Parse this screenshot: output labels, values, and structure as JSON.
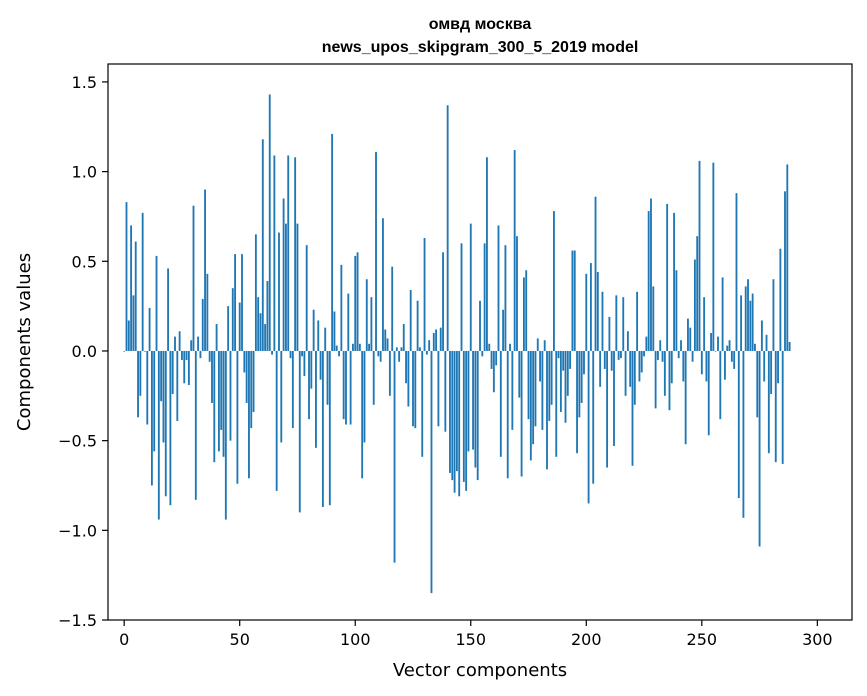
{
  "chart_data": {
    "type": "bar",
    "title": "омвд москва",
    "subtitle": "news_upos_skipgram_300_5_2019 model",
    "xlabel": "Vector components",
    "ylabel": "Components values",
    "xlim": [
      -7,
      315
    ],
    "ylim": [
      -1.5,
      1.6
    ],
    "x_ticks": [
      0,
      50,
      100,
      150,
      200,
      250,
      300
    ],
    "x_tick_labels": [
      "0",
      "50",
      "100",
      "150",
      "200",
      "250",
      "300"
    ],
    "y_ticks": [
      -1.5,
      -1.0,
      -0.5,
      0.0,
      0.5,
      1.0,
      1.5
    ],
    "y_tick_labels": [
      "−1.5",
      "−1.0",
      "−0.5",
      "0.0",
      "0.5",
      "1.0",
      "1.5"
    ],
    "bar_color": "#1f77b4",
    "series": [
      {
        "name": "components",
        "values": [
          0.0,
          0.83,
          0.17,
          0.7,
          0.31,
          0.61,
          -0.37,
          -0.25,
          0.77,
          0.0,
          -0.41,
          0.24,
          -0.75,
          -0.56,
          0.53,
          -0.94,
          -0.28,
          -0.51,
          -0.81,
          0.46,
          -0.86,
          -0.24,
          0.08,
          -0.39,
          0.11,
          -0.05,
          -0.18,
          -0.05,
          -0.19,
          0.06,
          0.81,
          -0.83,
          0.08,
          -0.04,
          0.29,
          0.9,
          0.43,
          -0.06,
          -0.29,
          -0.62,
          0.15,
          -0.56,
          -0.44,
          -0.59,
          -0.94,
          0.25,
          -0.5,
          0.35,
          0.54,
          -0.74,
          0.27,
          0.54,
          -0.12,
          -0.29,
          -0.71,
          -0.43,
          -0.34,
          0.65,
          0.3,
          0.21,
          1.18,
          0.15,
          0.39,
          1.43,
          -0.02,
          1.09,
          -0.78,
          0.66,
          -0.51,
          0.85,
          0.71,
          1.09,
          -0.04,
          -0.43,
          1.08,
          0.71,
          -0.9,
          -0.03,
          -0.14,
          0.59,
          -0.38,
          -0.21,
          0.23,
          -0.54,
          0.17,
          -0.16,
          -0.87,
          0.13,
          -0.3,
          -0.86,
          1.21,
          0.22,
          0.03,
          -0.03,
          0.48,
          -0.38,
          -0.41,
          0.32,
          -0.41,
          0.04,
          0.53,
          0.55,
          0.04,
          -0.71,
          -0.51,
          0.4,
          0.04,
          0.3,
          -0.3,
          1.11,
          -0.03,
          -0.06,
          0.74,
          0.12,
          0.07,
          -0.25,
          0.47,
          -1.18,
          0.02,
          -0.06,
          0.02,
          0.15,
          -0.18,
          -0.31,
          0.34,
          -0.42,
          -0.43,
          0.28,
          0.02,
          -0.59,
          0.63,
          -0.02,
          0.06,
          -1.35,
          0.1,
          0.12,
          -0.42,
          0.13,
          0.55,
          -0.45,
          1.37,
          -0.68,
          -0.72,
          -0.79,
          -0.67,
          -0.81,
          0.6,
          -0.73,
          -0.78,
          -0.56,
          0.71,
          -0.55,
          -0.65,
          -0.72,
          0.28,
          -0.03,
          0.6,
          1.08,
          0.04,
          -0.1,
          -0.23,
          -0.08,
          0.7,
          -0.59,
          0.23,
          0.59,
          -0.71,
          0.04,
          -0.44,
          1.12,
          0.64,
          -0.26,
          -0.7,
          0.41,
          0.45,
          -0.38,
          -0.61,
          -0.52,
          -0.42,
          0.07,
          -0.17,
          -0.44,
          0.06,
          -0.66,
          -0.39,
          -0.3,
          0.78,
          -0.59,
          -0.04,
          -0.34,
          -0.11,
          -0.4,
          -0.25,
          -0.1,
          0.56,
          0.56,
          -0.57,
          -0.37,
          -0.29,
          -0.13,
          0.43,
          -0.85,
          0.49,
          -0.74,
          0.86,
          0.44,
          -0.2,
          0.33,
          -0.1,
          -0.65,
          0.19,
          -0.11,
          -0.53,
          0.31,
          -0.05,
          -0.04,
          0.3,
          -0.25,
          0.11,
          -0.2,
          -0.64,
          -0.3,
          0.33,
          -0.17,
          -0.12,
          -0.03,
          0.08,
          0.78,
          0.85,
          0.36,
          -0.32,
          -0.05,
          0.06,
          -0.06,
          -0.25,
          0.82,
          -0.33,
          -0.18,
          0.77,
          0.45,
          -0.04,
          0.06,
          -0.17,
          -0.52,
          0.18,
          0.13,
          -0.06,
          0.51,
          0.64,
          1.06,
          -0.13,
          0.3,
          -0.17,
          -0.47,
          0.1,
          1.05,
          0.0,
          0.08,
          -0.38,
          0.41,
          -0.16,
          0.03,
          0.06,
          -0.06,
          -0.1,
          0.88,
          -0.82,
          0.31,
          -0.93,
          0.36,
          0.4,
          0.28,
          0.32,
          0.04,
          -0.37,
          -1.09,
          0.17,
          -0.17,
          0.09,
          -0.57,
          -0.24,
          0.4,
          -0.62,
          -0.18,
          0.57,
          -0.63,
          0.89,
          1.04,
          0.05
        ]
      }
    ]
  }
}
